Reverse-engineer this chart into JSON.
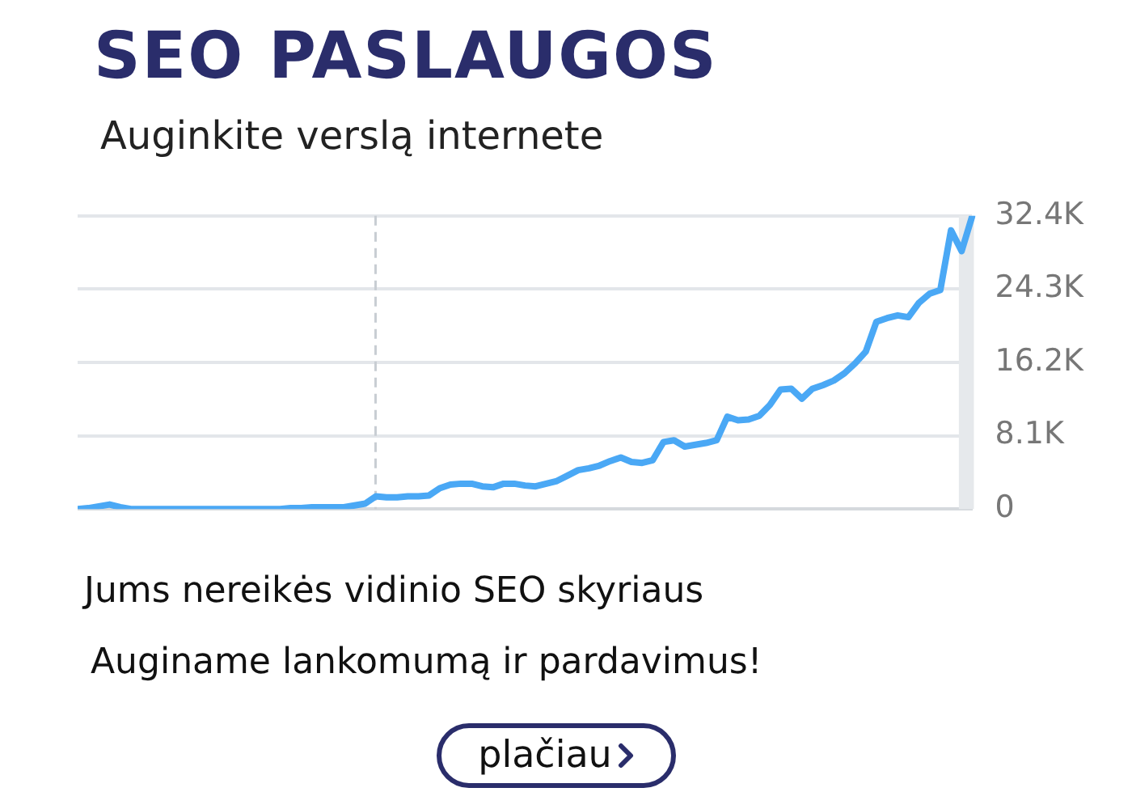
{
  "chart_data": {
    "type": "line",
    "title": "SEO PASLAUGOS",
    "subtitle": "Auginkite verslą internete",
    "annotations": [
      "Jums nereikės vidinio SEO skyriaus",
      "Auginame lankomumą ir pardavimus!",
      "plačiau"
    ],
    "categories": [
      null,
      null,
      null,
      null,
      null,
      null,
      null,
      null,
      null,
      null,
      null,
      null,
      null,
      null,
      null,
      null,
      null,
      null,
      null,
      null,
      null,
      null,
      null,
      null,
      null,
      null,
      null,
      null,
      null,
      null,
      null,
      null,
      null,
      null,
      null,
      null,
      null,
      null,
      null,
      null,
      null,
      null,
      null,
      null,
      null,
      null,
      null,
      null,
      null,
      null,
      null,
      null,
      null,
      null,
      null,
      null,
      null,
      null,
      null,
      null,
      null,
      null,
      null,
      null,
      null,
      null,
      null,
      null,
      null,
      null,
      null,
      null,
      null,
      null,
      null,
      null,
      null,
      null,
      null,
      null,
      null,
      null,
      null,
      null,
      null
    ],
    "series": [
      {
        "color": "#4aa8f5",
        "values": [
          0,
          0.1,
          0.3,
          0.5,
          0.2,
          0,
          0,
          0,
          0,
          0,
          0,
          0,
          0,
          0,
          0,
          0,
          0,
          0,
          0,
          0,
          0.1,
          0.1,
          0.2,
          0.2,
          0.2,
          0.2,
          0.4,
          0.6,
          1.4,
          1.3,
          1.3,
          1.4,
          1.4,
          1.5,
          2.3,
          2.7,
          2.8,
          2.8,
          2.5,
          2.4,
          2.8,
          2.8,
          2.6,
          2.5,
          2.8,
          3.1,
          3.7,
          4.3,
          4.5,
          4.8,
          5.3,
          5.7,
          5.2,
          5.1,
          5.4,
          7.4,
          7.6,
          6.9,
          7.1,
          7.3,
          7.6,
          10.2,
          9.8,
          9.9,
          10.3,
          11.5,
          13.2,
          13.3,
          12.2,
          13.3,
          13.7,
          14.2,
          15.0,
          16.1,
          17.4,
          20.7,
          21.1,
          21.4,
          21.2,
          22.8,
          23.8,
          24.2,
          30.8,
          28.5,
          32.4
        ]
      }
    ],
    "ylim": [
      0,
      32.4
    ],
    "yticks": [
      0,
      {
        "value": 8.1,
        "label": "8.1K"
      },
      {
        "value": 16.2,
        "label": "16.2K"
      },
      {
        "value": 24.3,
        "label": "24.3K"
      },
      {
        "value": 32.4,
        "label": "32.4K"
      }
    ],
    "grid": "y",
    "tick_labels": "y",
    "marker": "none",
    "line_style": "solid",
    "legend": false
  }
}
